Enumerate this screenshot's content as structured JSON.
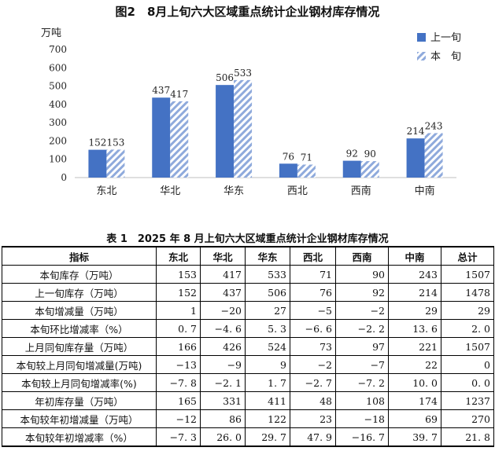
{
  "figure_title": "图2　8月上旬六大区域重点统计企业钢材库存情况",
  "chart_data": {
    "type": "bar",
    "ylabel": "万吨",
    "ylim": [
      0,
      700
    ],
    "yticks": [
      0,
      100,
      200,
      300,
      400,
      500,
      600,
      700
    ],
    "categories": [
      "东北",
      "华北",
      "华东",
      "西北",
      "西南",
      "中南"
    ],
    "series": [
      {
        "name": "上一旬",
        "values": [
          152,
          437,
          506,
          76,
          92,
          214
        ],
        "color": "#4472c4",
        "pattern": "solid"
      },
      {
        "name": "本　旬",
        "values": [
          153,
          417,
          533,
          71,
          90,
          243
        ],
        "color": "#8faadc",
        "pattern": "hatched"
      }
    ],
    "legend_position": "top-right",
    "grid": false
  },
  "table": {
    "title": "表 1　2025 年 8 月上旬六大区域重点统计企业钢材库存情况",
    "headers": [
      "指标",
      "东北",
      "华北",
      "华东",
      "西北",
      "西南",
      "中南",
      "总计"
    ],
    "rows": [
      [
        "本旬库存（万吨）",
        "153",
        "417",
        "533",
        "71",
        "90",
        "243",
        "1507"
      ],
      [
        "上一旬库存（万吨）",
        "152",
        "437",
        "506",
        "76",
        "92",
        "214",
        "1478"
      ],
      [
        "本旬增减量（万吨）",
        "1",
        "−20",
        "27",
        "−5",
        "−2",
        "29",
        "29"
      ],
      [
        "本旬环比增减率（%）",
        "0. 7",
        "−4. 6",
        "5. 3",
        "−6. 6",
        "−2. 2",
        "13. 6",
        "2. 0"
      ],
      [
        "上月同旬库存量（万吨）",
        "166",
        "426",
        "524",
        "73",
        "97",
        "221",
        "1507"
      ],
      [
        "本旬较上月同旬增减量(万吨)",
        "−13",
        "−9",
        "9",
        "−2",
        "−7",
        "22",
        "0"
      ],
      [
        "本旬较上月同旬增减率(%)",
        "−7. 8",
        "−2. 1",
        "1. 7",
        "−2. 7",
        "−7. 2",
        "10. 0",
        "0. 0"
      ],
      [
        "年初库存量（万吨）",
        "165",
        "331",
        "411",
        "48",
        "108",
        "174",
        "1237"
      ],
      [
        "本旬较年初增减量（万吨）",
        "−12",
        "86",
        "122",
        "23",
        "−18",
        "69",
        "270"
      ],
      [
        "本旬较年初增减率（%）",
        "−7. 3",
        "26. 0",
        "29. 7",
        "47. 9",
        "−16. 7",
        "39. 7",
        "21. 8"
      ]
    ]
  }
}
